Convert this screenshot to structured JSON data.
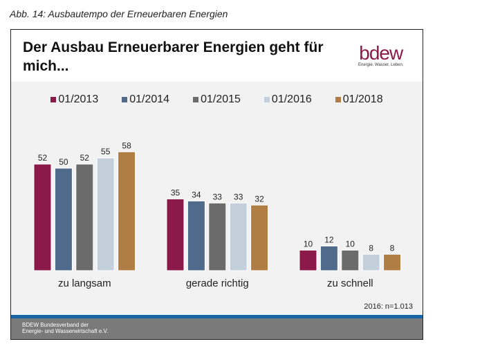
{
  "caption": "Abb. 14: Ausbautempo der Erneuerbaren Energien",
  "logo": {
    "text": "bdew",
    "tagline": "Energie. Wasser. Leben."
  },
  "note": "2016: n=1.013",
  "footer": {
    "line1": "BDEW Bundesverband der",
    "line2": "Energie- und Wasserwirtschaft e.V."
  },
  "chart_data": {
    "type": "bar",
    "title": "Der Ausbau Erneuerbarer Energien geht für mich...",
    "categories": [
      "zu langsam",
      "gerade richtig",
      "zu schnell"
    ],
    "series": [
      {
        "name": "01/2013",
        "values": [
          52,
          35,
          10
        ],
        "color": "#8b1a4a"
      },
      {
        "name": "01/2014",
        "values": [
          50,
          34,
          12
        ],
        "color": "#4f6a8a"
      },
      {
        "name": "01/2015",
        "values": [
          52,
          33,
          10
        ],
        "color": "#6b6b6b"
      },
      {
        "name": "01/2016",
        "values": [
          55,
          33,
          8
        ],
        "color": "#c3cfdb"
      },
      {
        "name": "01/2018",
        "values": [
          58,
          32,
          8
        ],
        "color": "#b07d45"
      }
    ],
    "legend": "top",
    "grid": false
  }
}
